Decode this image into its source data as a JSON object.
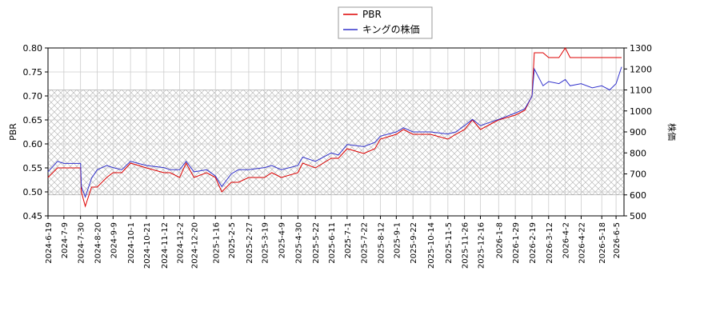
{
  "chart_data": {
    "type": "line",
    "x": [
      "2024-6-19",
      "2024-7-1",
      "2024-7-9",
      "2024-7-30",
      "2024-7-31",
      "2024-8-5",
      "2024-8-13",
      "2024-8-20",
      "2024-9-1",
      "2024-9-9",
      "2024-9-20",
      "2024-10-1",
      "2024-10-21",
      "2024-11-12",
      "2024-11-20",
      "2024-12-2",
      "2024-12-10",
      "2024-12-20",
      "2025-1-5",
      "2025-1-16",
      "2025-1-24",
      "2025-2-5",
      "2025-2-14",
      "2025-2-27",
      "2025-3-19",
      "2025-3-28",
      "2025-4-9",
      "2025-4-30",
      "2025-5-6",
      "2025-5-22",
      "2025-6-11",
      "2025-6-20",
      "2025-7-1",
      "2025-7-22",
      "2025-8-5",
      "2025-8-12",
      "2025-9-1",
      "2025-9-10",
      "2025-9-22",
      "2025-10-14",
      "2025-11-5",
      "2025-11-15",
      "2025-11-26",
      "2025-12-6",
      "2025-12-16",
      "2026-1-8",
      "2026-1-29",
      "2026-2-10",
      "2026-2-19",
      "2026-2-22",
      "2026-3-5",
      "2026-3-12",
      "2026-3-25",
      "2026-4-2",
      "2026-4-8",
      "2026-4-22",
      "2026-5-6",
      "2026-5-18",
      "2026-5-28",
      "2026-6-5",
      "2026-6-12"
    ],
    "series": [
      {
        "name": "PBR",
        "color": "#dd0000",
        "axis": "y",
        "values": [
          0.53,
          0.55,
          0.55,
          0.55,
          0.5,
          0.47,
          0.51,
          0.51,
          0.53,
          0.54,
          0.54,
          0.56,
          0.55,
          0.54,
          0.54,
          0.53,
          0.56,
          0.53,
          0.54,
          0.53,
          0.5,
          0.52,
          0.52,
          0.53,
          0.53,
          0.54,
          0.53,
          0.54,
          0.56,
          0.55,
          0.57,
          0.57,
          0.59,
          0.58,
          0.59,
          0.61,
          0.62,
          0.63,
          0.62,
          0.62,
          0.61,
          0.62,
          0.63,
          0.65,
          0.63,
          0.65,
          0.66,
          0.67,
          0.7,
          0.79,
          0.79,
          0.78,
          0.78,
          0.8,
          0.78,
          0.78,
          0.78,
          0.78,
          0.78,
          0.78,
          0.78
        ]
      },
      {
        "name": "キングの株価",
        "color": "#3333cc",
        "axis": "y2",
        "values": [
          710,
          760,
          750,
          750,
          640,
          590,
          680,
          720,
          740,
          730,
          720,
          760,
          740,
          730,
          720,
          720,
          760,
          710,
          720,
          690,
          640,
          700,
          720,
          720,
          730,
          740,
          720,
          740,
          780,
          760,
          800,
          790,
          840,
          830,
          850,
          880,
          900,
          920,
          900,
          900,
          890,
          900,
          930,
          960,
          930,
          960,
          990,
          1010,
          1070,
          1200,
          1120,
          1140,
          1130,
          1150,
          1120,
          1130,
          1110,
          1120,
          1100,
          1130,
          1210
        ]
      }
    ],
    "xlim": [
      "2024-6-19",
      "2026-6-15"
    ],
    "xticks": [
      "2024-6-19",
      "2024-7-9",
      "2024-7-30",
      "2024-8-20",
      "2024-9-9",
      "2024-10-1",
      "2024-10-21",
      "2024-11-12",
      "2024-12-2",
      "2024-12-20",
      "2025-1-16",
      "2025-2-5",
      "2025-2-27",
      "2025-3-19",
      "2025-4-9",
      "2025-4-30",
      "2025-5-22",
      "2025-6-11",
      "2025-7-1",
      "2025-7-22",
      "2025-8-12",
      "2025-9-1",
      "2025-9-22",
      "2025-10-14",
      "2025-11-5",
      "2025-11-26",
      "2025-12-16",
      "2026-1-8",
      "2026-1-29",
      "2026-2-19",
      "2026-3-12",
      "2026-4-2",
      "2026-4-22",
      "2026-5-18",
      "2026-6-5"
    ],
    "ylabel": "PBR",
    "ylim": [
      0.45,
      0.8
    ],
    "yticks": [
      {
        "value": 0.45,
        "label": "0.45"
      },
      {
        "value": 0.5,
        "label": "0.50"
      },
      {
        "value": 0.55,
        "label": "0.55"
      },
      {
        "value": 0.6,
        "label": "0.60"
      },
      {
        "value": 0.65,
        "label": "0.65"
      },
      {
        "value": 0.7,
        "label": "0.70"
      },
      {
        "value": 0.75,
        "label": "0.75"
      },
      {
        "value": 0.8,
        "label": "0.80"
      }
    ],
    "y2label": "株価",
    "y2lim": [
      500,
      1300
    ],
    "y2ticks": [
      500,
      600,
      700,
      800,
      900,
      1000,
      1100,
      1200,
      1300
    ],
    "shaded_range": {
      "axis": "y2",
      "range": [
        600,
        1100
      ]
    },
    "grid": true,
    "legend": "top"
  }
}
